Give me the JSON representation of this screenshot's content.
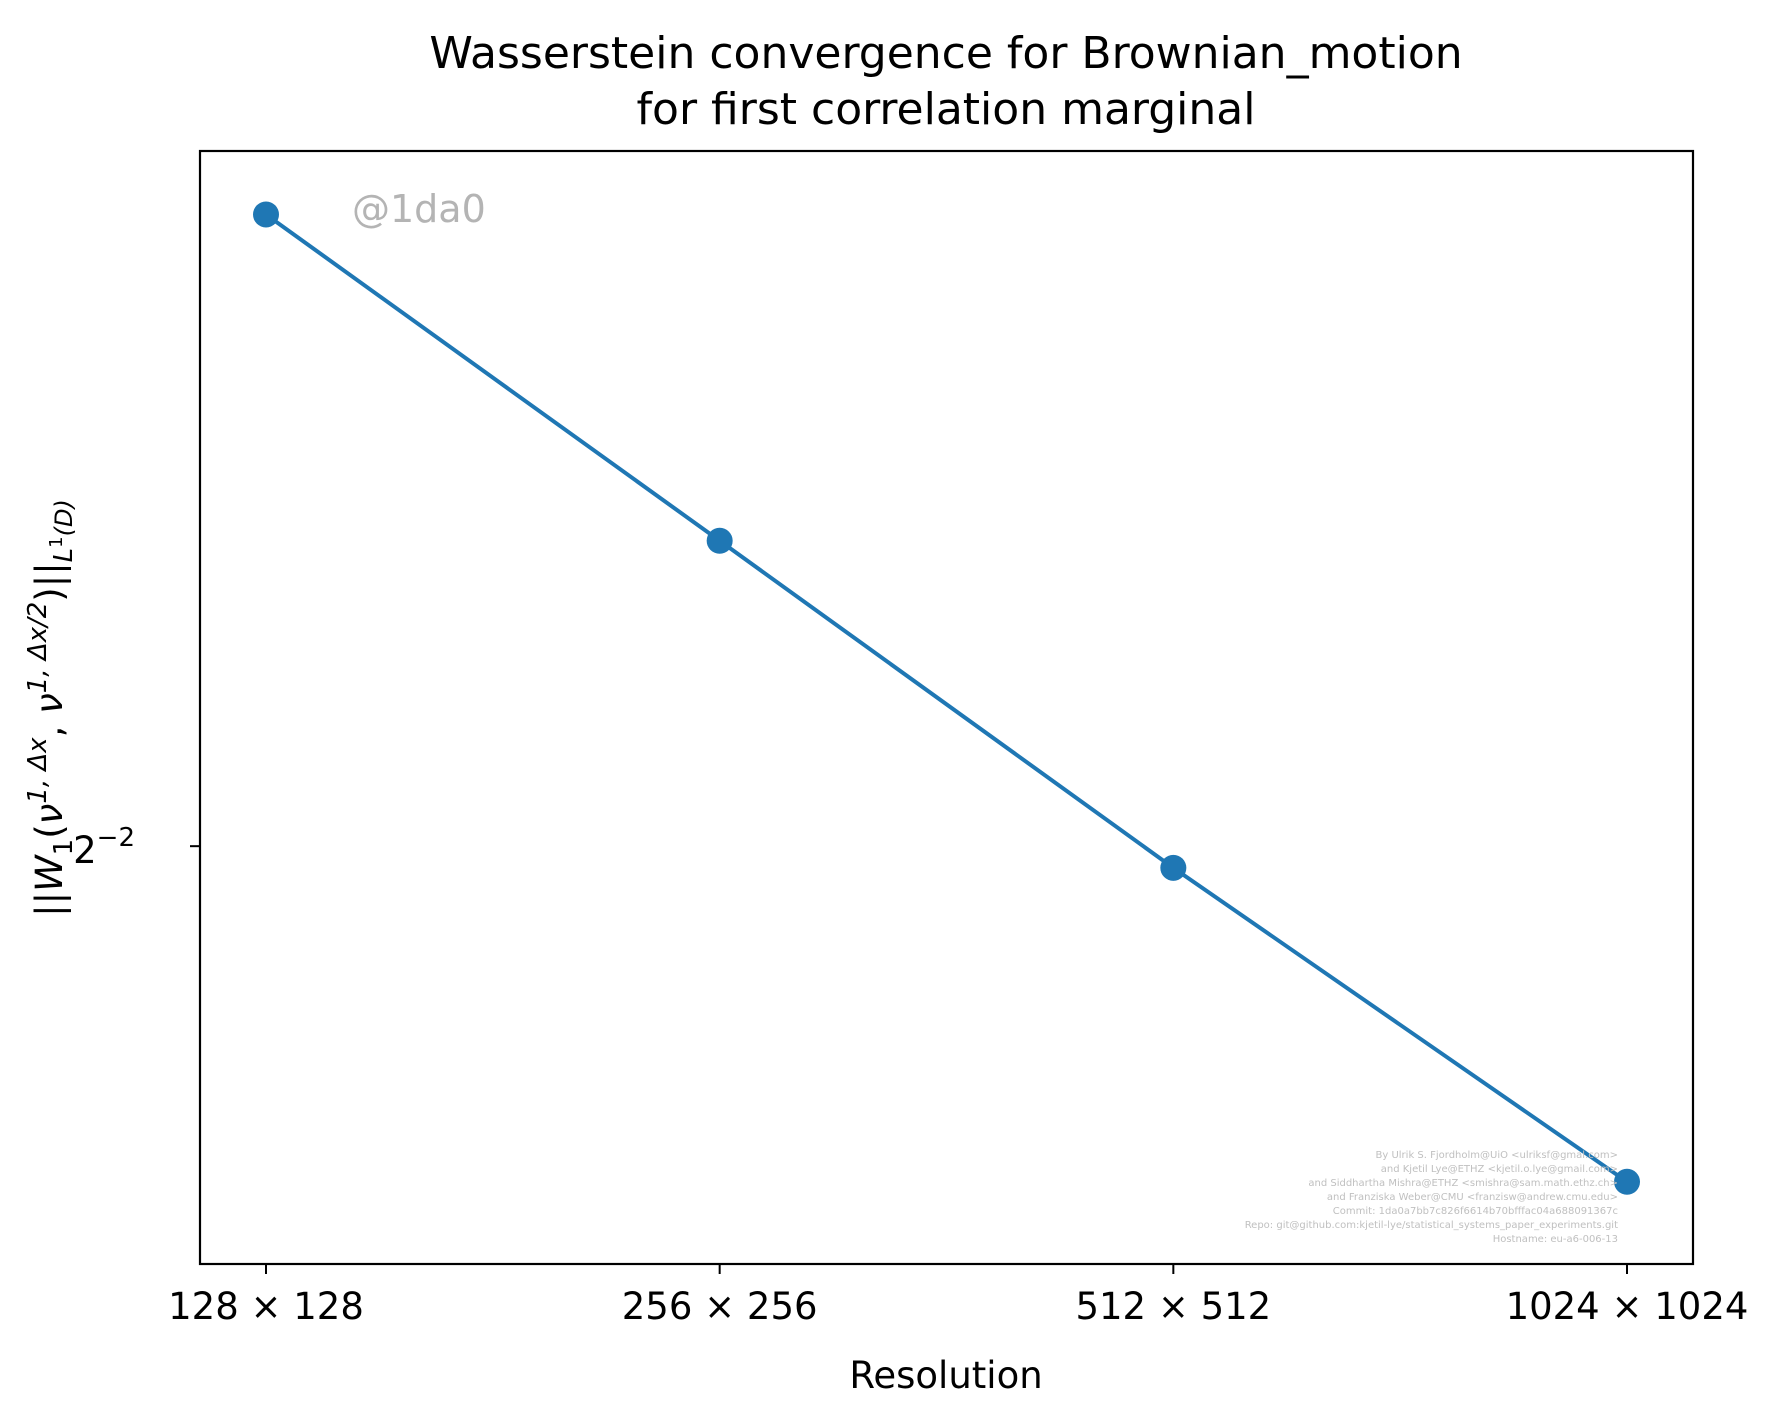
{
  "chart_data": {
    "type": "line",
    "title": "Wasserstein convergence for Brownian_motion",
    "subtitle": "for first correlation marginal",
    "xlabel": "Resolution",
    "ylabel": "||W_1(ν^{1,Δx}, ν^{1,Δx/2})||_{L^1(D)}",
    "categories": [
      "128 × 128",
      "256 × 256",
      "512 × 512",
      "1024 × 1024"
    ],
    "series": [
      {
        "values": [
          0.335,
          0.288,
          0.2475,
          0.214
        ],
        "color": "#1f77b4",
        "marker": "circle"
      }
    ],
    "yscale": "log2",
    "ylim": [
      0.206,
      0.345
    ],
    "yticks": [
      {
        "value": 0.25,
        "label": "2^{−2}"
      }
    ],
    "grid": false,
    "legend": "none",
    "annotations": [
      "@1da0",
      "By Ulrik S. Fjordholm@UiO <ulriksf@gmal.com>",
      "and Kjetil Lye@ETHZ <kjetil.o.lye@gmail.com>",
      "and Siddhartha Mishra@ETHZ <smishra@sam.math.ethz.ch>",
      "and Franziska Weber@CMU <franzisw@andrew.cmu.edu>",
      "Commit: 1da0a7bb7c826f6614b70bfffac04a688091367c",
      "Repo: git@github.com:kjetil-lye/statistical_systems_paper_experiments.git",
      "Hostname: eu-a6-006-13"
    ]
  }
}
